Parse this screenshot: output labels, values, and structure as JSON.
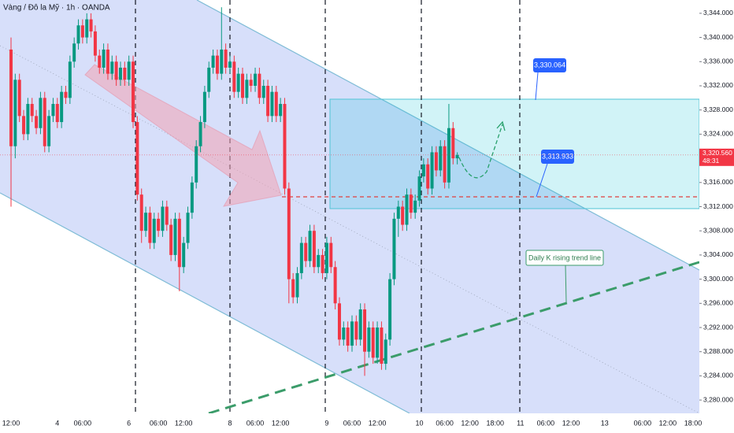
{
  "chart_data": {
    "type": "candlestick",
    "title": "Vàng / Đô la Mỹ · 1h · OANDA",
    "up_color": "#089981",
    "down_color": "#f23645",
    "ylim": [
      3277.8,
      3346.2
    ],
    "yticks": [
      {
        "value": 3280,
        "label": "3,280.000"
      },
      {
        "value": 3284,
        "label": "3,284.000"
      },
      {
        "value": 3288,
        "label": "3,288.000"
      },
      {
        "value": 3292,
        "label": "3,292.000"
      },
      {
        "value": 3296,
        "label": "3,296.000"
      },
      {
        "value": 3300,
        "label": "3,300.000"
      },
      {
        "value": 3304,
        "label": "3,304.000"
      },
      {
        "value": 3308,
        "label": "3,308.000"
      },
      {
        "value": 3312,
        "label": "3,312.000"
      },
      {
        "value": 3316,
        "label": "3,316.000"
      },
      {
        "value": 3320,
        "label": "3,320.000"
      },
      {
        "value": 3324,
        "label": "3,324.000"
      },
      {
        "value": 3328,
        "label": "3,328.000"
      },
      {
        "value": 3332,
        "label": "3,332.000"
      },
      {
        "value": 3336,
        "label": "3,336.000"
      },
      {
        "value": 3340,
        "label": "3,340.000"
      },
      {
        "value": 3344,
        "label": "3,344.000"
      }
    ],
    "categories": [
      "12:00",
      null,
      null,
      null,
      null,
      null,
      null,
      null,
      null,
      null,
      null,
      "4",
      null,
      null,
      null,
      null,
      null,
      "06:00",
      null,
      null,
      null,
      null,
      null,
      null,
      null,
      null,
      null,
      null,
      "6",
      null,
      null,
      null,
      null,
      null,
      null,
      "06:00",
      null,
      null,
      null,
      null,
      null,
      "12:00",
      null,
      null,
      null,
      null,
      null,
      null,
      null,
      null,
      null,
      null,
      "8",
      null,
      null,
      null,
      null,
      null,
      "06:00",
      null,
      null,
      null,
      null,
      null,
      "12:00",
      null,
      null,
      null,
      null,
      null,
      null,
      null,
      null,
      null,
      null,
      "9",
      null,
      null,
      null,
      null,
      null,
      "06:00",
      null,
      null,
      null,
      null,
      null,
      "12:00",
      null,
      null,
      null,
      null,
      null,
      null,
      null,
      null,
      null,
      "10",
      null,
      null,
      null,
      null,
      null,
      "06:00",
      null,
      null,
      null,
      null,
      null,
      "12:00",
      null,
      null,
      null,
      null,
      null,
      "18:00",
      null,
      null,
      null,
      null,
      null,
      "11",
      null,
      null,
      null,
      null,
      null,
      "06:00",
      null,
      null,
      null,
      null,
      null,
      "12:00",
      null,
      null,
      null,
      null,
      null,
      null,
      null,
      "13",
      null,
      null,
      null,
      null,
      null,
      null,
      null,
      null,
      "06:00",
      null,
      null,
      null,
      null,
      null,
      "12:00",
      null,
      null,
      null,
      null,
      null,
      "18:00"
    ],
    "ohlc": [
      [
        3338,
        3340,
        3312,
        3322
      ],
      [
        3322,
        3334,
        3320,
        3333
      ],
      [
        3333,
        3334,
        3326,
        3327
      ],
      [
        3327,
        3328,
        3323,
        3324
      ],
      [
        3324,
        3330,
        3323,
        3329
      ],
      [
        3329,
        3330,
        3326,
        3327
      ],
      [
        3327,
        3328,
        3324,
        3325
      ],
      [
        3325,
        3331,
        3324,
        3330
      ],
      [
        3330,
        3331,
        3321,
        3322
      ],
      [
        3322,
        3328,
        3321,
        3327
      ],
      [
        3327,
        3330,
        3326,
        3329
      ],
      [
        3329,
        3330,
        3325,
        3326
      ],
      [
        3326,
        3332,
        3325,
        3331
      ],
      [
        3331,
        3332,
        3329,
        3330
      ],
      [
        3330,
        3337,
        3329,
        3336
      ],
      [
        3336,
        3340,
        3335,
        3339
      ],
      [
        3339,
        3343,
        3338,
        3342
      ],
      [
        3342,
        3343,
        3339,
        3340
      ],
      [
        3340,
        3344,
        3339,
        3343
      ],
      [
        3343,
        3344,
        3340,
        3341
      ],
      [
        3341,
        3342,
        3336,
        3337
      ],
      [
        3337,
        3338,
        3334,
        3335
      ],
      [
        3335,
        3339,
        3334,
        3338
      ],
      [
        3338,
        3339,
        3333,
        3334
      ],
      [
        3334,
        3337,
        3333,
        3336
      ],
      [
        3336,
        3337,
        3332,
        3333
      ],
      [
        3333,
        3336,
        3332,
        3335
      ],
      [
        3335,
        3336,
        3332,
        3333
      ],
      [
        3333,
        3337,
        3332,
        3336
      ],
      [
        3336,
        3337,
        3325,
        3326
      ],
      [
        3326,
        3327,
        3313,
        3314
      ],
      [
        3314,
        3315,
        3306,
        3308
      ],
      [
        3308,
        3312,
        3307,
        3311
      ],
      [
        3311,
        3312,
        3305,
        3306
      ],
      [
        3306,
        3311,
        3305,
        3310
      ],
      [
        3310,
        3311,
        3307,
        3308
      ],
      [
        3308,
        3313,
        3307,
        3312
      ],
      [
        3312,
        3313,
        3308,
        3309
      ],
      [
        3309,
        3310,
        3303,
        3304
      ],
      [
        3304,
        3311,
        3303,
        3310
      ],
      [
        3310,
        3311,
        3298,
        3302
      ],
      [
        3302,
        3307,
        3301,
        3306
      ],
      [
        3306,
        3312,
        3305,
        3311
      ],
      [
        3311,
        3317,
        3310,
        3316
      ],
      [
        3316,
        3323,
        3315,
        3322
      ],
      [
        3322,
        3327,
        3321,
        3326
      ],
      [
        3326,
        3332,
        3325,
        3331
      ],
      [
        3331,
        3336,
        3330,
        3335
      ],
      [
        3335,
        3338,
        3334,
        3337
      ],
      [
        3337,
        3338,
        3333,
        3334
      ],
      [
        3334,
        3345,
        3333,
        3338
      ],
      [
        3338,
        3339,
        3334,
        3335
      ],
      [
        3335,
        3337,
        3334,
        3336
      ],
      [
        3336,
        3337,
        3330,
        3331
      ],
      [
        3331,
        3335,
        3330,
        3334
      ],
      [
        3334,
        3335,
        3329,
        3330
      ],
      [
        3330,
        3334,
        3329,
        3333
      ],
      [
        3333,
        3334,
        3331,
        3332
      ],
      [
        3332,
        3335,
        3331,
        3334
      ],
      [
        3334,
        3335,
        3329,
        3330
      ],
      [
        3330,
        3333,
        3329,
        3332
      ],
      [
        3332,
        3333,
        3326,
        3327
      ],
      [
        3327,
        3332,
        3326,
        3331
      ],
      [
        3331,
        3332,
        3326,
        3327
      ],
      [
        3327,
        3330,
        3326,
        3329
      ],
      [
        3329,
        3330,
        3314,
        3315
      ],
      [
        3315,
        3316,
        3296,
        3300
      ],
      [
        3300,
        3301,
        3296,
        3297
      ],
      [
        3297,
        3302,
        3296,
        3301
      ],
      [
        3301,
        3307,
        3300,
        3306
      ],
      [
        3306,
        3307,
        3302,
        3303
      ],
      [
        3303,
        3309,
        3302,
        3308
      ],
      [
        3308,
        3309,
        3301,
        3302
      ],
      [
        3302,
        3305,
        3301,
        3304
      ],
      [
        3304,
        3305,
        3300,
        3301
      ],
      [
        3301,
        3307,
        3300,
        3306
      ],
      [
        3306,
        3307,
        3301,
        3302
      ],
      [
        3302,
        3303,
        3295,
        3296
      ],
      [
        3296,
        3297,
        3289,
        3290
      ],
      [
        3290,
        3293,
        3289,
        3292
      ],
      [
        3292,
        3293,
        3288,
        3289
      ],
      [
        3289,
        3294,
        3288,
        3293
      ],
      [
        3293,
        3294,
        3289,
        3290
      ],
      [
        3290,
        3296,
        3289,
        3295
      ],
      [
        3295,
        3296,
        3284,
        3288
      ],
      [
        3288,
        3293,
        3287,
        3292
      ],
      [
        3292,
        3293,
        3286,
        3287
      ],
      [
        3287,
        3293,
        3286,
        3292
      ],
      [
        3292,
        3293,
        3285,
        3286
      ],
      [
        3286,
        3291,
        3285,
        3290
      ],
      [
        3290,
        3301,
        3289,
        3300
      ],
      [
        3300,
        3311,
        3299,
        3310
      ],
      [
        3310,
        3313,
        3307,
        3312
      ],
      [
        3312,
        3313,
        3308,
        3309
      ],
      [
        3309,
        3315,
        3308,
        3314
      ],
      [
        3314,
        3315,
        3310,
        3311
      ],
      [
        3311,
        3314,
        3310,
        3313
      ],
      [
        3313,
        3318,
        3312,
        3317
      ],
      [
        3317,
        3320,
        3316,
        3319
      ],
      [
        3319,
        3320,
        3314,
        3315
      ],
      [
        3315,
        3322,
        3314,
        3321
      ],
      [
        3321,
        3322,
        3317,
        3318
      ],
      [
        3318,
        3323,
        3317,
        3322
      ],
      [
        3322,
        3323,
        3315,
        3316
      ],
      [
        3316,
        3329,
        3315,
        3325
      ],
      [
        3325,
        3326,
        3319,
        3320
      ],
      [
        3320,
        3321,
        3319,
        3320.56
      ],
      null,
      null,
      null,
      null,
      null,
      null,
      null,
      null,
      null,
      null,
      null,
      null,
      null,
      null,
      null,
      null,
      null,
      null,
      null,
      null,
      null,
      null,
      null,
      null,
      null,
      null,
      null,
      null,
      null,
      null,
      null,
      null,
      null,
      null,
      null,
      null,
      null,
      null,
      null,
      null,
      null,
      null,
      null,
      null,
      null,
      null,
      null,
      null,
      null,
      null,
      null,
      null,
      null,
      null,
      null,
      null
    ],
    "price_tag": {
      "label": "3,320.560",
      "countdown": "48:31"
    },
    "annotations": [
      {
        "text": "3,330.064"
      },
      {
        "text": "3,313.933"
      },
      {
        "text": "Daily K rising trend line"
      }
    ]
  }
}
